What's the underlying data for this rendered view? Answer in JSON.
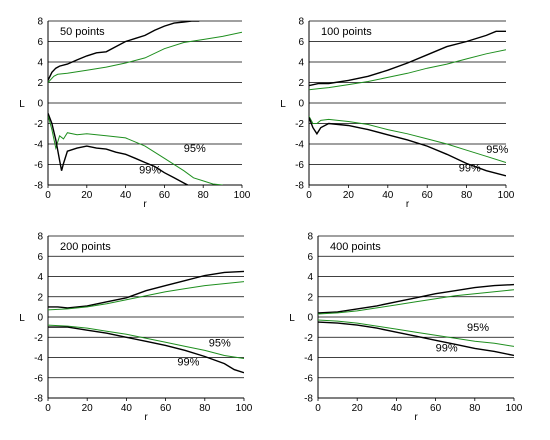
{
  "colors": {
    "black_series": "#000000",
    "green_series": "#1f8f1f",
    "axis": "#000000",
    "grid": "#000000"
  },
  "chart_data": [
    {
      "type": "line",
      "title": "50 points",
      "xlabel": "r",
      "ylabel": "L",
      "xlim": [
        0,
        100
      ],
      "ylim": [
        -8,
        8
      ],
      "xticks": [
        "0",
        "20",
        "40",
        "60",
        "80",
        "100"
      ],
      "yticks": [
        "8",
        "6",
        "4",
        "2",
        "0",
        "-2",
        "-4",
        "-6",
        "-8"
      ],
      "grid": "horizontal",
      "annotations": [
        {
          "text": "95%",
          "x": 70,
          "y": -4.8
        },
        {
          "text": "99%",
          "x": 47,
          "y": -6.9
        }
      ],
      "series": [
        {
          "color": "#000000",
          "x": [
            0,
            2,
            4,
            6,
            10,
            15,
            20,
            25,
            30,
            35,
            40,
            45,
            50,
            55,
            60,
            65,
            70,
            74,
            78
          ],
          "y": [
            2.2,
            3.0,
            3.4,
            3.6,
            3.8,
            4.2,
            4.6,
            4.9,
            5.0,
            5.5,
            6.0,
            6.3,
            6.6,
            7.1,
            7.5,
            7.8,
            7.9,
            8.0,
            8.0
          ]
        },
        {
          "color": "#1f8f1f",
          "x": [
            0,
            3,
            5,
            10,
            20,
            30,
            40,
            50,
            60,
            70,
            80,
            90,
            100
          ],
          "y": [
            2.0,
            2.6,
            2.8,
            2.9,
            3.2,
            3.5,
            3.9,
            4.4,
            5.3,
            5.9,
            6.2,
            6.5,
            6.9
          ]
        },
        {
          "color": "#1f8f1f",
          "x": [
            0,
            2,
            4,
            6,
            8,
            10,
            15,
            20,
            25,
            30,
            40,
            50,
            60,
            70,
            75,
            80,
            85,
            90
          ],
          "y": [
            -1.2,
            -2.6,
            -4.4,
            -3.2,
            -3.5,
            -2.9,
            -3.1,
            -3.0,
            -3.1,
            -3.2,
            -3.4,
            -4.2,
            -5.4,
            -6.6,
            -7.3,
            -7.6,
            -7.9,
            -8.0
          ]
        },
        {
          "color": "#000000",
          "x": [
            0,
            2,
            4,
            6,
            7,
            8,
            10,
            15,
            20,
            25,
            30,
            35,
            40,
            45,
            50,
            55,
            60,
            65,
            70,
            72
          ],
          "y": [
            -1.0,
            -2.0,
            -3.6,
            -5.6,
            -6.6,
            -5.9,
            -4.7,
            -4.4,
            -4.2,
            -4.4,
            -4.5,
            -4.8,
            -5.0,
            -5.4,
            -5.8,
            -6.2,
            -6.8,
            -7.3,
            -7.8,
            -8.0
          ]
        }
      ]
    },
    {
      "type": "line",
      "title": "100 points",
      "xlabel": "r",
      "ylabel": "L",
      "xlim": [
        0,
        100
      ],
      "ylim": [
        -8,
        8
      ],
      "xticks": [
        "0",
        "20",
        "40",
        "60",
        "80",
        "100"
      ],
      "yticks": [
        "8",
        "6",
        "4",
        "2",
        "0",
        "-2",
        "-4",
        "-6",
        "-8"
      ],
      "grid": "horizontal",
      "annotations": [
        {
          "text": "95%",
          "x": 90,
          "y": -4.9
        },
        {
          "text": "99%",
          "x": 76,
          "y": -6.7
        }
      ],
      "series": [
        {
          "color": "#000000",
          "x": [
            0,
            5,
            10,
            20,
            30,
            40,
            50,
            60,
            70,
            80,
            90,
            95,
            100
          ],
          "y": [
            1.7,
            1.9,
            1.9,
            2.2,
            2.6,
            3.2,
            3.9,
            4.7,
            5.5,
            6.0,
            6.6,
            7.0,
            7.0
          ]
        },
        {
          "color": "#1f8f1f",
          "x": [
            0,
            5,
            10,
            20,
            30,
            40,
            50,
            60,
            70,
            80,
            90,
            100
          ],
          "y": [
            1.3,
            1.4,
            1.5,
            1.8,
            2.1,
            2.5,
            2.9,
            3.4,
            3.8,
            4.3,
            4.8,
            5.2
          ]
        },
        {
          "color": "#1f8f1f",
          "x": [
            0,
            2,
            4,
            6,
            10,
            20,
            30,
            40,
            50,
            60,
            70,
            80,
            90,
            100
          ],
          "y": [
            -1.3,
            -2.0,
            -2.0,
            -1.7,
            -1.6,
            -1.8,
            -2.1,
            -2.6,
            -3.0,
            -3.5,
            -4.0,
            -4.6,
            -5.2,
            -5.8
          ]
        },
        {
          "color": "#000000",
          "x": [
            0,
            2,
            4,
            6,
            10,
            20,
            30,
            40,
            50,
            60,
            70,
            80,
            90,
            100
          ],
          "y": [
            -1.4,
            -2.4,
            -3.0,
            -2.4,
            -2.0,
            -2.2,
            -2.6,
            -3.1,
            -3.6,
            -4.2,
            -5.0,
            -5.9,
            -6.6,
            -7.1
          ]
        }
      ]
    },
    {
      "type": "line",
      "title": "200 points",
      "xlabel": "r",
      "ylabel": "L",
      "xlim": [
        0,
        100
      ],
      "ylim": [
        -8,
        8
      ],
      "xticks": [
        "0",
        "20",
        "40",
        "60",
        "80",
        "100"
      ],
      "yticks": [
        "8",
        "6",
        "4",
        "2",
        "0",
        "-2",
        "-4",
        "-6",
        "-8"
      ],
      "grid": "horizontal",
      "annotations": [
        {
          "text": "95%",
          "x": 82,
          "y": -2.9
        },
        {
          "text": "99%",
          "x": 66,
          "y": -4.8
        }
      ],
      "series": [
        {
          "color": "#000000",
          "x": [
            0,
            5,
            10,
            20,
            30,
            40,
            50,
            60,
            70,
            80,
            90,
            100
          ],
          "y": [
            1.0,
            1.0,
            0.9,
            1.1,
            1.5,
            1.9,
            2.6,
            3.1,
            3.6,
            4.1,
            4.4,
            4.5
          ]
        },
        {
          "color": "#1f8f1f",
          "x": [
            0,
            10,
            20,
            30,
            40,
            50,
            60,
            70,
            80,
            90,
            100
          ],
          "y": [
            0.7,
            0.8,
            1.0,
            1.3,
            1.7,
            2.1,
            2.5,
            2.8,
            3.1,
            3.3,
            3.5
          ]
        },
        {
          "color": "#1f8f1f",
          "x": [
            0,
            10,
            20,
            30,
            40,
            50,
            60,
            70,
            80,
            90,
            100
          ],
          "y": [
            -0.8,
            -0.9,
            -1.1,
            -1.4,
            -1.7,
            -2.1,
            -2.5,
            -2.9,
            -3.3,
            -3.8,
            -4.1
          ]
        },
        {
          "color": "#000000",
          "x": [
            0,
            10,
            20,
            30,
            40,
            50,
            60,
            70,
            80,
            90,
            95,
            100
          ],
          "y": [
            -1.0,
            -1.0,
            -1.3,
            -1.6,
            -2.0,
            -2.4,
            -2.8,
            -3.3,
            -3.9,
            -4.6,
            -5.2,
            -5.5
          ]
        }
      ]
    },
    {
      "type": "line",
      "title": "400 points",
      "xlabel": "r",
      "ylabel": "L",
      "xlim": [
        0,
        100
      ],
      "ylim": [
        -8,
        8
      ],
      "xticks": [
        "0",
        "20",
        "40",
        "60",
        "80",
        "100"
      ],
      "yticks": [
        "8",
        "6",
        "4",
        "2",
        "0",
        "-2",
        "-4",
        "-6",
        "-8"
      ],
      "grid": "horizontal",
      "annotations": [
        {
          "text": "95%",
          "x": 76,
          "y": -1.4
        },
        {
          "text": "99%",
          "x": 60,
          "y": -3.4
        }
      ],
      "series": [
        {
          "color": "#000000",
          "x": [
            0,
            10,
            20,
            30,
            40,
            50,
            60,
            70,
            80,
            90,
            100
          ],
          "y": [
            0.4,
            0.5,
            0.8,
            1.1,
            1.5,
            1.9,
            2.3,
            2.6,
            2.9,
            3.1,
            3.2
          ]
        },
        {
          "color": "#1f8f1f",
          "x": [
            0,
            10,
            20,
            30,
            40,
            50,
            60,
            70,
            80,
            90,
            100
          ],
          "y": [
            0.3,
            0.4,
            0.6,
            0.9,
            1.2,
            1.5,
            1.8,
            2.1,
            2.3,
            2.5,
            2.7
          ]
        },
        {
          "color": "#1f8f1f",
          "x": [
            0,
            10,
            20,
            30,
            40,
            50,
            60,
            70,
            80,
            90,
            100
          ],
          "y": [
            -0.3,
            -0.4,
            -0.6,
            -0.9,
            -1.2,
            -1.5,
            -1.8,
            -2.1,
            -2.4,
            -2.6,
            -2.9
          ]
        },
        {
          "color": "#000000",
          "x": [
            0,
            10,
            20,
            30,
            40,
            50,
            60,
            70,
            80,
            90,
            100
          ],
          "y": [
            -0.5,
            -0.6,
            -0.8,
            -1.1,
            -1.5,
            -1.9,
            -2.3,
            -2.7,
            -3.1,
            -3.4,
            -3.8
          ]
        }
      ]
    }
  ]
}
